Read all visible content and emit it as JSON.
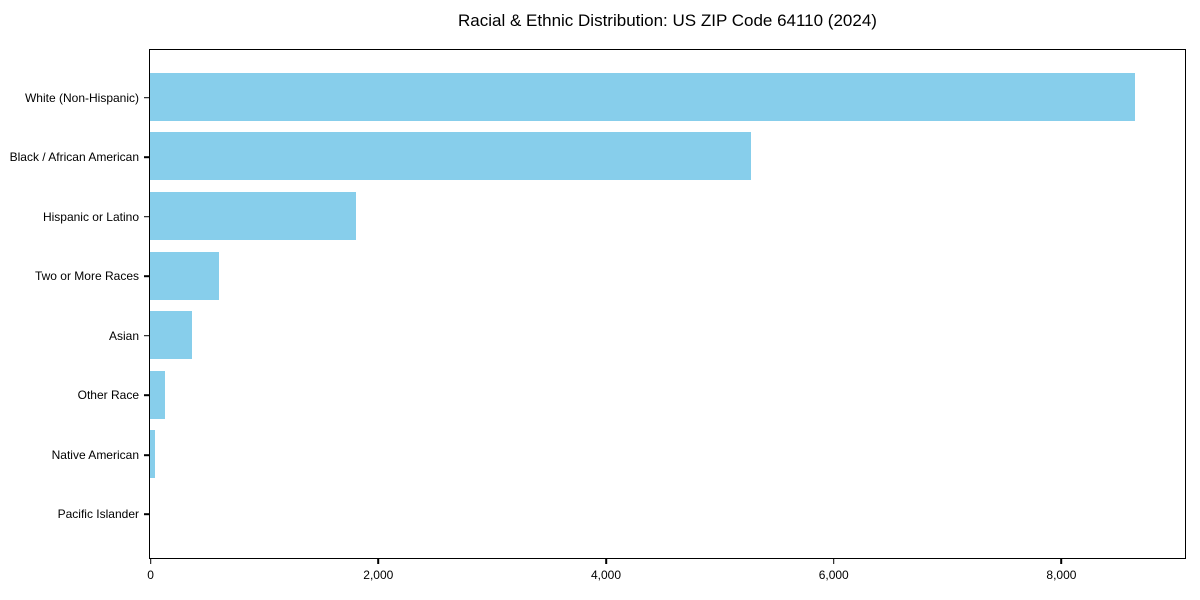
{
  "title": "Racial & Ethnic Distribution: US ZIP Code 64110 (2024)",
  "colors": {
    "bar": "#87CEEB",
    "axis": "#000000",
    "background": "#FFFFFF",
    "text": "#000000"
  },
  "chart_data": {
    "type": "bar",
    "orientation": "horizontal",
    "title": "Racial & Ethnic Distribution: US ZIP Code 64110 (2024)",
    "categories": [
      "White (Non-Hispanic)",
      "Black / African American",
      "Hispanic or Latino",
      "Two or More Races",
      "Asian",
      "Other Race",
      "Native American",
      "Pacific Islander"
    ],
    "values": [
      8650,
      5280,
      1810,
      610,
      365,
      130,
      45,
      0
    ],
    "xlabel": "",
    "ylabel": "",
    "xlim": [
      0,
      9080
    ],
    "xticks": [
      0,
      2000,
      4000,
      6000,
      8000
    ],
    "xtick_labels": [
      "0",
      "2,000",
      "4,000",
      "6,000",
      "8,000"
    ],
    "bar_color": "#87CEEB",
    "grid": false,
    "legend": null,
    "frame": true
  }
}
